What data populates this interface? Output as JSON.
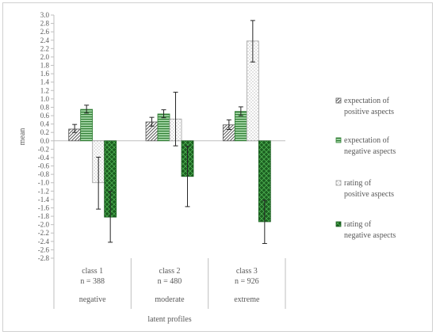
{
  "chart_data": {
    "type": "bar",
    "ylabel": "mean",
    "xlabel": "latent profiles",
    "ylim": [
      -2.8,
      3.0
    ],
    "ytick_step": 0.2,
    "grid": false,
    "legend_position": "right",
    "categories": [
      {
        "class": "class 1",
        "n": "n = 388",
        "profile": "negative"
      },
      {
        "class": "class 2",
        "n": "n = 480",
        "profile": "moderate"
      },
      {
        "class": "class 3",
        "n": "n = 926",
        "profile": "extreme"
      }
    ],
    "series": [
      {
        "name_line1": "expectation of",
        "name_line2": "positive aspects",
        "pattern": "diag",
        "color": "#595959",
        "values": [
          0.28,
          0.45,
          0.38
        ],
        "err_low": [
          0.2,
          0.35,
          0.27
        ],
        "err_high": [
          0.39,
          0.56,
          0.5
        ]
      },
      {
        "name_line1": "expectation of",
        "name_line2": "negative aspects",
        "pattern": "hstripe",
        "color": "#2e7d32",
        "values": [
          0.75,
          0.64,
          0.7
        ],
        "err_low": [
          0.66,
          0.55,
          0.6
        ],
        "err_high": [
          0.85,
          0.74,
          0.81
        ]
      },
      {
        "name_line1": "rating of",
        "name_line2": "positive aspects",
        "pattern": "dots",
        "color": "#9e9e9e",
        "values": [
          -1.0,
          0.52,
          2.38
        ],
        "err_low": [
          -1.63,
          -0.12,
          1.88
        ],
        "err_high": [
          -0.39,
          1.16,
          2.87
        ]
      },
      {
        "name_line1": "rating of",
        "name_line2": "negative aspects",
        "pattern": "check",
        "color": "#1b5e20",
        "values": [
          -1.82,
          -0.85,
          -1.93
        ],
        "err_low": [
          -2.42,
          -1.57,
          -2.45
        ],
        "err_high": [
          -1.21,
          -0.13,
          -1.42
        ]
      }
    ]
  }
}
